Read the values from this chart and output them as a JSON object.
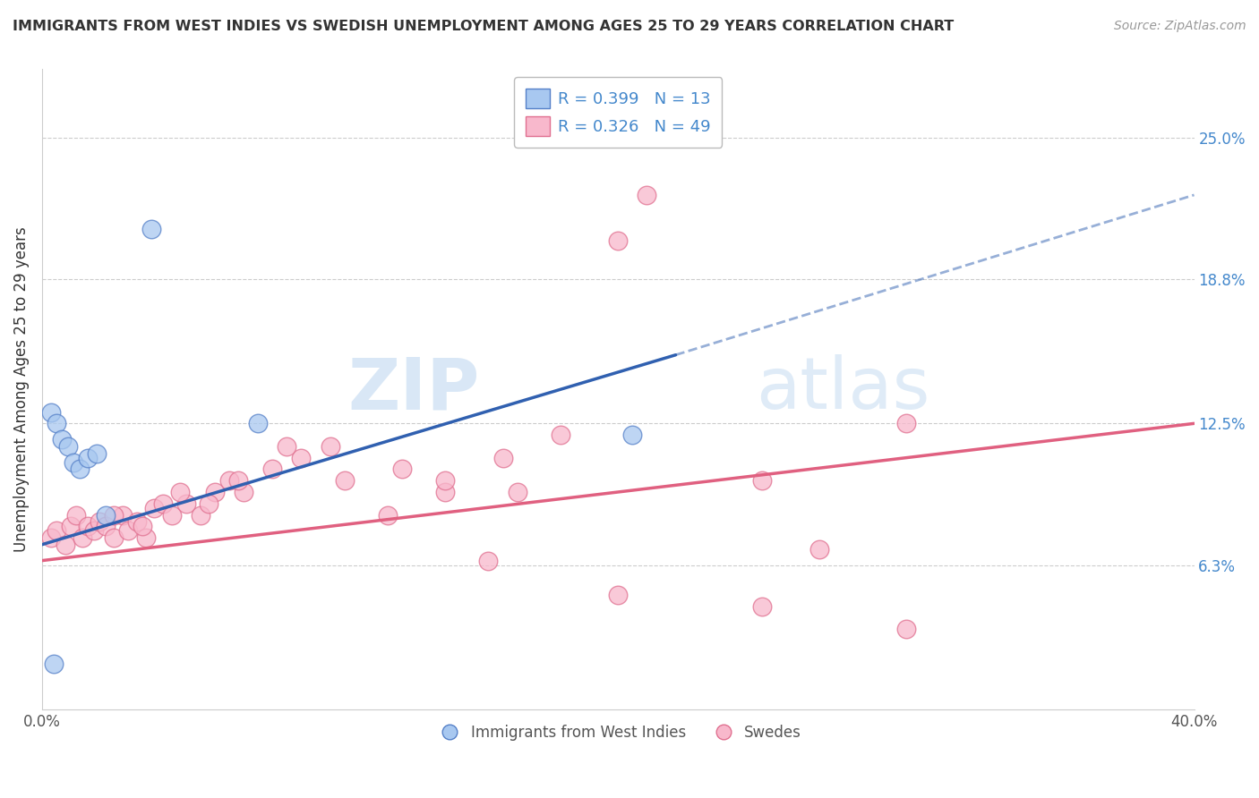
{
  "title": "IMMIGRANTS FROM WEST INDIES VS SWEDISH UNEMPLOYMENT AMONG AGES 25 TO 29 YEARS CORRELATION CHART",
  "source": "Source: ZipAtlas.com",
  "ylabel": "Unemployment Among Ages 25 to 29 years",
  "xlim": [
    0.0,
    40.0
  ],
  "ylim": [
    0.0,
    28.0
  ],
  "ytick_positions": [
    6.3,
    12.5,
    18.8,
    25.0
  ],
  "ytick_labels": [
    "6.3%",
    "12.5%",
    "18.8%",
    "25.0%"
  ],
  "blue_scatter_x": [
    0.3,
    0.5,
    0.7,
    0.9,
    1.1,
    1.3,
    1.6,
    1.9,
    2.2,
    3.8,
    7.5,
    20.5,
    0.4
  ],
  "blue_scatter_y": [
    13.0,
    12.5,
    11.8,
    11.5,
    10.8,
    10.5,
    11.0,
    11.2,
    8.5,
    21.0,
    12.5,
    12.0,
    2.0
  ],
  "pink_scatter_x": [
    0.3,
    0.5,
    0.8,
    1.0,
    1.2,
    1.4,
    1.6,
    1.8,
    2.0,
    2.2,
    2.5,
    2.8,
    3.0,
    3.3,
    3.6,
    3.9,
    4.2,
    4.5,
    5.0,
    5.5,
    6.0,
    6.5,
    7.0,
    8.0,
    9.0,
    10.0,
    12.0,
    14.0,
    16.5,
    20.0,
    21.0,
    14.0,
    16.0,
    18.0,
    25.0,
    27.0,
    30.0,
    2.5,
    3.5,
    4.8,
    5.8,
    6.8,
    8.5,
    10.5,
    12.5,
    15.5,
    20.0,
    25.0,
    30.0
  ],
  "pink_scatter_y": [
    7.5,
    7.8,
    7.2,
    8.0,
    8.5,
    7.5,
    8.0,
    7.8,
    8.2,
    8.0,
    7.5,
    8.5,
    7.8,
    8.2,
    7.5,
    8.8,
    9.0,
    8.5,
    9.0,
    8.5,
    9.5,
    10.0,
    9.5,
    10.5,
    11.0,
    11.5,
    8.5,
    9.5,
    9.5,
    20.5,
    22.5,
    10.0,
    11.0,
    12.0,
    10.0,
    7.0,
    12.5,
    8.5,
    8.0,
    9.5,
    9.0,
    10.0,
    11.5,
    10.0,
    10.5,
    6.5,
    5.0,
    4.5,
    3.5
  ],
  "blue_line_x0": 0.0,
  "blue_line_y0": 7.2,
  "blue_line_x1": 22.0,
  "blue_line_y1": 15.5,
  "blue_dash_x0": 22.0,
  "blue_dash_y0": 15.5,
  "blue_dash_x1": 40.0,
  "blue_dash_y1": 22.5,
  "pink_line_x0": 0.0,
  "pink_line_y0": 6.5,
  "pink_line_x1": 40.0,
  "pink_line_y1": 12.5,
  "blue_dot_color": "#a8c8f0",
  "blue_dot_edge": "#5580c8",
  "blue_line_color": "#3060b0",
  "pink_dot_color": "#f8b8cc",
  "pink_dot_edge": "#e07090",
  "pink_line_color": "#e06080",
  "legend_blue_r": "R = 0.399",
  "legend_blue_n": "N = 13",
  "legend_pink_r": "R = 0.326",
  "legend_pink_n": "N = 49",
  "watermark_zip": "ZIP",
  "watermark_atlas": "atlas",
  "background_color": "#ffffff",
  "grid_color": "#cccccc"
}
